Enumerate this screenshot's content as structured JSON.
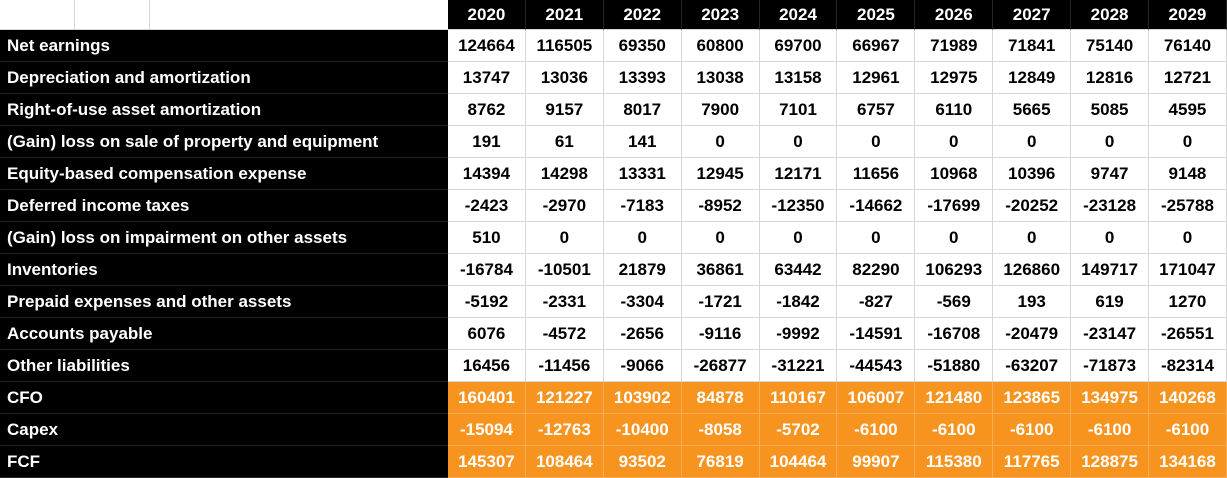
{
  "table": {
    "years": [
      "2020",
      "2021",
      "2022",
      "2023",
      "2024",
      "2025",
      "2026",
      "2027",
      "2028",
      "2029"
    ],
    "rows": [
      {
        "label": "Net earnings",
        "type": "normal",
        "values": [
          124664,
          116505,
          69350,
          60800,
          69700,
          66967,
          71989,
          71841,
          75140,
          76140
        ]
      },
      {
        "label": "Depreciation and amortization",
        "type": "normal",
        "values": [
          13747,
          13036,
          13393,
          13038,
          13158,
          12961,
          12975,
          12849,
          12816,
          12721
        ]
      },
      {
        "label": "Right-of-use asset amortization",
        "type": "normal",
        "values": [
          8762,
          9157,
          8017,
          7900,
          7101,
          6757,
          6110,
          5665,
          5085,
          4595
        ]
      },
      {
        "label": "(Gain) loss on sale of property and equipment",
        "type": "normal",
        "values": [
          191,
          61,
          141,
          0,
          0,
          0,
          0,
          0,
          0,
          0
        ]
      },
      {
        "label": "Equity-based compensation expense",
        "type": "normal",
        "values": [
          14394,
          14298,
          13331,
          12945,
          12171,
          11656,
          10968,
          10396,
          9747,
          9148
        ]
      },
      {
        "label": "Deferred income taxes",
        "type": "normal",
        "values": [
          -2423,
          -2970,
          -7183,
          -8952,
          -12350,
          -14662,
          -17699,
          -20252,
          -23128,
          -25788
        ]
      },
      {
        "label": "(Gain) loss on impairment on other assets",
        "type": "normal",
        "values": [
          510,
          0,
          0,
          0,
          0,
          0,
          0,
          0,
          0,
          0
        ]
      },
      {
        "label": "Inventories",
        "type": "normal",
        "values": [
          -16784,
          -10501,
          21879,
          36861,
          63442,
          82290,
          106293,
          126860,
          149717,
          171047
        ]
      },
      {
        "label": "Prepaid expenses and other assets",
        "type": "normal",
        "values": [
          -5192,
          -2331,
          -3304,
          -1721,
          -1842,
          -827,
          -569,
          193,
          619,
          1270
        ]
      },
      {
        "label": "Accounts payable",
        "type": "normal",
        "values": [
          6076,
          -4572,
          -2656,
          -9116,
          -9992,
          -14591,
          -16708,
          -20479,
          -23147,
          -26551
        ]
      },
      {
        "label": "Other liabilities",
        "type": "normal",
        "values": [
          16456,
          -11456,
          -9066,
          -26877,
          -31221,
          -44543,
          -51880,
          -63207,
          -71873,
          -82314
        ]
      },
      {
        "label": "CFO",
        "type": "highlight",
        "values": [
          160401,
          121227,
          103902,
          84878,
          110167,
          106007,
          121480,
          123865,
          134975,
          140268
        ]
      },
      {
        "label": "Capex",
        "type": "highlight",
        "values": [
          -15094,
          -12763,
          -10400,
          -8058,
          -5702,
          -6100,
          -6100,
          -6100,
          -6100,
          -6100
        ]
      },
      {
        "label": "FCF",
        "type": "highlight",
        "values": [
          145307,
          108464,
          93502,
          76819,
          104464,
          99907,
          115380,
          117765,
          128875,
          134168
        ]
      }
    ],
    "colors": {
      "header_background": "#000000",
      "label_background": "#000000",
      "highlight_background": "#F79420",
      "highlight_gridline": "#FBAD56",
      "gridline": "#D6D6D6",
      "label_text": "#FFFFFF",
      "value_text": "#000000",
      "highlight_text": "#FFFFFF"
    }
  }
}
